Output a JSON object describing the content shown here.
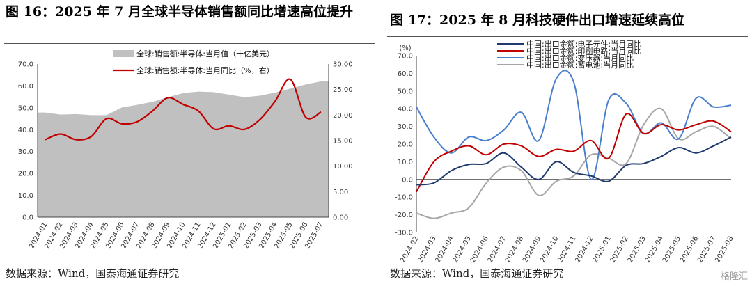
{
  "left": {
    "title": "图 16：2025 年 7 月全球半导体销售额同比增速高位提升",
    "source": "数据来源：Wind，国泰海通证券研究"
  },
  "right": {
    "title": "图 17：2025 年 8 月科技硬件出口增速延续高位",
    "source": "数据来源：Wind，国泰海通证券研究"
  },
  "watermark": "格隆汇",
  "chart_data": [
    {
      "type": "area+line",
      "title": "",
      "x": [
        "2024-01",
        "2024-02",
        "2024-03",
        "2024-04",
        "2024-05",
        "2024-06",
        "2024-07",
        "2024-08",
        "2024-09",
        "2024-10",
        "2024-11",
        "2024-12",
        "2025-01",
        "2025-02",
        "2025-03",
        "2025-04",
        "2025-05",
        "2025-06",
        "2025-07"
      ],
      "y_left_ticks": [
        "70.0",
        "60.0",
        "50.0",
        "40.0",
        "30.0",
        "20.0",
        "10.0",
        "0.0"
      ],
      "y_right_ticks": [
        "30.00",
        "25.00",
        "20.00",
        "15.00",
        "10.00",
        "5.00",
        "0.00"
      ],
      "ylim_left": [
        0,
        70
      ],
      "ylim_right": [
        0,
        30
      ],
      "grid": false,
      "legend_position": "top-right",
      "series": [
        {
          "name": "全球:销售额:半导体:当月值（十亿美元）",
          "kind": "area",
          "axis": "right",
          "color": "#c0c0c0",
          "values": [
            20.5,
            20.1,
            20.2,
            20.0,
            20.0,
            21.5,
            22.0,
            22.6,
            23.5,
            24.3,
            24.6,
            24.5,
            24.0,
            23.5,
            23.8,
            24.4,
            25.2,
            26.0,
            26.6
          ]
        },
        {
          "name": "全球:销售额:半导体:当月同比（%，右）",
          "kind": "line",
          "axis": "right",
          "color": "#c00000",
          "values": [
            15.2,
            16.3,
            15.2,
            15.8,
            19.3,
            18.3,
            18.7,
            20.8,
            23.4,
            22.1,
            20.8,
            17.3,
            17.9,
            17.2,
            19.1,
            22.7,
            27.0,
            19.6,
            20.6
          ]
        }
      ]
    },
    {
      "type": "line",
      "title": "",
      "ylabel": "(%)",
      "x": [
        "2024-02",
        "2024-03",
        "2024-04",
        "2024-05",
        "2024-06",
        "2024-07",
        "2024-08",
        "2024-09",
        "2024-10",
        "2024-11",
        "2024-12",
        "2025-01",
        "2025-02",
        "2025-03",
        "2025-04",
        "2025-05",
        "2025-06",
        "2025-07",
        "2025-08"
      ],
      "y_ticks": [
        "70.0",
        "60.0",
        "50.0",
        "40.0",
        "30.0",
        "20.0",
        "10.0",
        "0.0",
        "-10.0",
        "-20.0",
        "-30.0"
      ],
      "ylim": [
        -30,
        70
      ],
      "grid": false,
      "legend_position": "top-center",
      "series": [
        {
          "name": "中国:出口金额:电子元件:当月同比",
          "color": "#1f3a6e",
          "values": [
            -3.0,
            -2.0,
            5.0,
            8.5,
            9.0,
            15.0,
            7.0,
            0.0,
            10.0,
            4.0,
            2.0,
            -1.0,
            8.0,
            9.0,
            13.0,
            18.0,
            15.0,
            19.0,
            24.0
          ]
        },
        {
          "name": "中国:出口金额:印刷电路:当月同比",
          "color": "#c00000",
          "values": [
            -7.0,
            10.0,
            16.0,
            19.0,
            14.0,
            20.0,
            19.0,
            13.0,
            17.0,
            16.0,
            22.0,
            12.0,
            37.0,
            26.0,
            31.0,
            28.0,
            31.0,
            33.0,
            27.0
          ]
        },
        {
          "name": "中国:出口金额:变压器:当月同比",
          "color": "#4a7fce",
          "values": [
            41.0,
            24.0,
            15.0,
            24.0,
            22.0,
            28.0,
            38.0,
            22.0,
            57.0,
            55.0,
            0.0,
            45.0,
            43.0,
            26.0,
            32.0,
            23.0,
            46.0,
            41.0,
            42.0
          ]
        },
        {
          "name": "中国:出口金额:蓄电池:当月同比",
          "color": "#a6a6a6",
          "values": [
            -19.0,
            -22.0,
            -19.0,
            -16.0,
            -2.0,
            7.0,
            5.0,
            -9.0,
            -1.0,
            2.0,
            14.0,
            12.0,
            9.0,
            31.0,
            40.0,
            23.0,
            27.0,
            30.0,
            23.0
          ]
        }
      ]
    }
  ]
}
